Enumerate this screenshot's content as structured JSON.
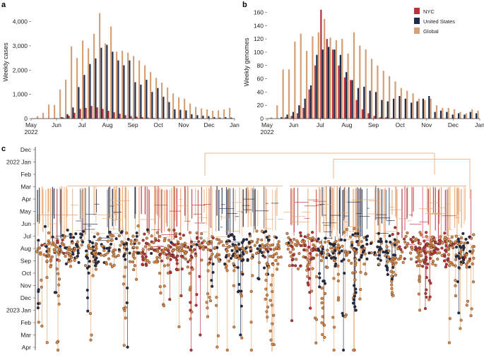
{
  "panels": {
    "a": {
      "label": "a",
      "type": "bar",
      "ylabel": "Weekly cases",
      "ylim": [
        0,
        4600
      ],
      "yticks": [
        0,
        1000,
        2000,
        3000,
        4000
      ],
      "ytick_labels": [
        "0",
        "1,000",
        "2,000",
        "3,000",
        "4,000"
      ],
      "xticks": [
        "May\n2022",
        "Jun",
        "Jul",
        "Aug",
        "Sep",
        "Oct",
        "Nov",
        "Dec",
        "Jan"
      ],
      "series": [
        {
          "name": "Global",
          "color": "#D4A17A",
          "values": [
            0,
            100,
            240,
            580,
            560,
            1200,
            1600,
            2980,
            2500,
            3220,
            2900,
            3500,
            4350,
            3100,
            3800,
            2760,
            2800,
            2720,
            2580,
            2400,
            2200,
            1920,
            1680,
            1480,
            1280,
            1040,
            880,
            820,
            620,
            480,
            420,
            380,
            320,
            340,
            380,
            440
          ]
        },
        {
          "name": "United States",
          "color": "#1E2B4A",
          "values": [
            0,
            0,
            0,
            0,
            20,
            60,
            180,
            460,
            1300,
            1800,
            2250,
            2480,
            2920,
            3040,
            2760,
            2400,
            2200,
            2400,
            1500,
            1400,
            1600,
            1100,
            1260,
            900,
            680,
            380,
            360,
            340,
            180,
            140,
            120,
            100,
            60,
            40,
            60,
            40
          ]
        },
        {
          "name": "NYC",
          "color": "#B8333A",
          "values": [
            0,
            0,
            0,
            0,
            0,
            40,
            120,
            240,
            400,
            440,
            520,
            460,
            400,
            320,
            260,
            200,
            140,
            100,
            80,
            60,
            40,
            30,
            20,
            10,
            10,
            5,
            5,
            5,
            0,
            0,
            0,
            0,
            0,
            0,
            0,
            0
          ]
        }
      ]
    },
    "b": {
      "label": "b",
      "type": "bar",
      "ylabel": "Weekly genomes",
      "ylim": [
        0,
        168
      ],
      "yticks": [
        0,
        20,
        40,
        60,
        80,
        100,
        120,
        140,
        160
      ],
      "ytick_labels": [
        "0",
        "20",
        "40",
        "60",
        "80",
        "100",
        "120",
        "140",
        "160"
      ],
      "xticks": [
        "May\n2022",
        "Jun",
        "Jul",
        "Aug",
        "Sep",
        "Oct",
        "Nov",
        "Dec",
        "Jan"
      ],
      "legend": [
        "NYC",
        "United States",
        "Global"
      ],
      "series": [
        {
          "name": "NYC",
          "color": "#B8333A",
          "values": [
            0,
            0,
            0,
            2,
            4,
            8,
            16,
            44,
            80,
            164,
            120,
            104,
            80,
            62,
            58,
            28,
            14,
            8,
            4,
            2,
            2,
            1,
            0,
            0,
            0,
            0,
            0,
            0,
            0,
            0,
            0,
            0,
            0,
            0,
            0,
            0
          ]
        },
        {
          "name": "United States",
          "color": "#1E2B4A",
          "values": [
            0,
            0,
            2,
            6,
            10,
            20,
            30,
            50,
            96,
            104,
            108,
            104,
            96,
            70,
            58,
            46,
            48,
            42,
            40,
            28,
            26,
            30,
            34,
            30,
            24,
            26,
            30,
            34,
            10,
            12,
            10,
            6,
            8,
            6,
            10,
            8
          ]
        },
        {
          "name": "Global",
          "color": "#D4A17A",
          "values": [
            2,
            20,
            74,
            74,
            116,
            128,
            102,
            124,
            130,
            150,
            122,
            118,
            120,
            98,
            130,
            110,
            104,
            90,
            80,
            72,
            64,
            56,
            46,
            42,
            38,
            30,
            28,
            30,
            20,
            16,
            16,
            14,
            10,
            8,
            14,
            12
          ]
        }
      ]
    },
    "c": {
      "label": "c",
      "type": "phylogenetic-tree",
      "ytick_labels": [
        "Dec",
        "2022 Jan",
        "Feb",
        "Mar",
        "Apr",
        "May",
        "Jun",
        "Jul",
        "Aug",
        "Sep",
        "Oct",
        "Nov",
        "Dec",
        "2023 Jan",
        "Feb",
        "Mar",
        "Apr"
      ],
      "colors": {
        "NYC": "#B8333A",
        "United States": "#1E2B4A",
        "Global": "#D98A4A",
        "branch": "#E8A36A"
      }
    }
  }
}
